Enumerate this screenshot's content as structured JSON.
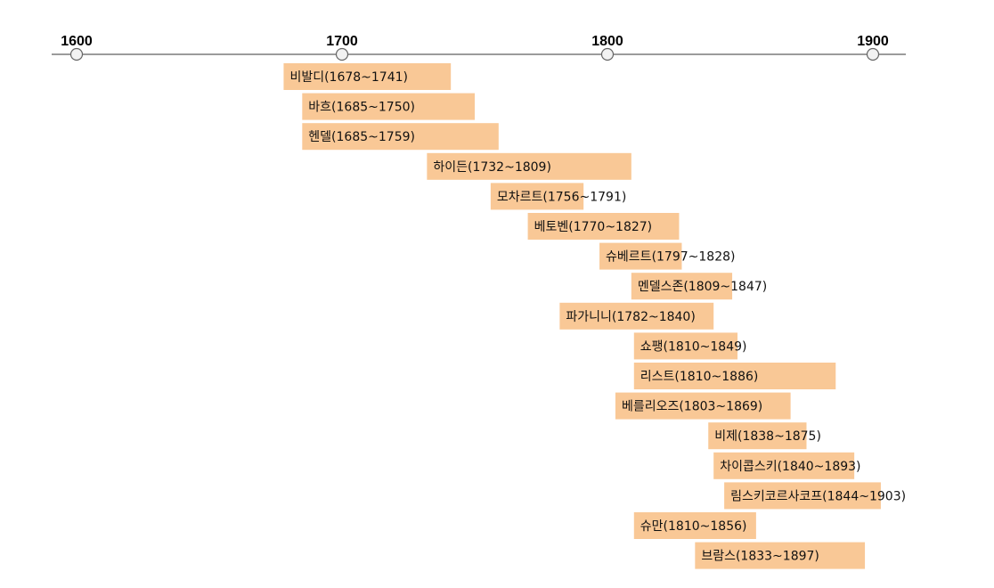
{
  "chart_data": {
    "type": "timeline",
    "axis": {
      "min": 1600,
      "max": 1900,
      "ticks": [
        1600,
        1700,
        1800,
        1900
      ],
      "tick_labels": [
        "1600",
        "1700",
        "1800",
        "1900"
      ]
    },
    "colors": {
      "bar": "#f9c896",
      "axis": "#7a7a7a",
      "marker_fill": "#f2f2f2",
      "marker_stroke": "#666666",
      "text": "#111111"
    },
    "items": [
      {
        "name": "비발디",
        "start": 1678,
        "end": 1741,
        "label": "비발디(1678~1741)"
      },
      {
        "name": "바흐",
        "start": 1685,
        "end": 1750,
        "label": "바흐(1685~1750)"
      },
      {
        "name": "헨델",
        "start": 1685,
        "end": 1759,
        "label": "헨델(1685~1759)"
      },
      {
        "name": "하이든",
        "start": 1732,
        "end": 1809,
        "label": "하이든(1732~1809)"
      },
      {
        "name": "모차르트",
        "start": 1756,
        "end": 1791,
        "label": "모차르트(1756~1791)"
      },
      {
        "name": "베토벤",
        "start": 1770,
        "end": 1827,
        "label": "베토벤(1770~1827)"
      },
      {
        "name": "슈베르트",
        "start": 1797,
        "end": 1828,
        "label": "슈베르트(1797~1828)"
      },
      {
        "name": "멘델스존",
        "start": 1809,
        "end": 1847,
        "label": "멘델스존(1809~1847)"
      },
      {
        "name": "파가니니",
        "start": 1782,
        "end": 1840,
        "label": "파가니니(1782~1840)"
      },
      {
        "name": "쇼팽",
        "start": 1810,
        "end": 1849,
        "label": "쇼팽(1810~1849)"
      },
      {
        "name": "리스트",
        "start": 1810,
        "end": 1886,
        "label": "리스트(1810~1886)"
      },
      {
        "name": "베를리오즈",
        "start": 1803,
        "end": 1869,
        "label": "베를리오즈(1803~1869)"
      },
      {
        "name": "비제",
        "start": 1838,
        "end": 1875,
        "label": "비제(1838~1875)"
      },
      {
        "name": "차이콥스키",
        "start": 1840,
        "end": 1893,
        "label": "차이콥스키(1840~1893)"
      },
      {
        "name": "림스키코르사코프",
        "start": 1844,
        "end": 1903,
        "label": "림스키코르사코프(1844~1903)"
      },
      {
        "name": "슈만",
        "start": 1810,
        "end": 1856,
        "label": "슈만(1810~1856)"
      },
      {
        "name": "브람스",
        "start": 1833,
        "end": 1897,
        "label": "브람스(1833~1897)"
      }
    ]
  }
}
